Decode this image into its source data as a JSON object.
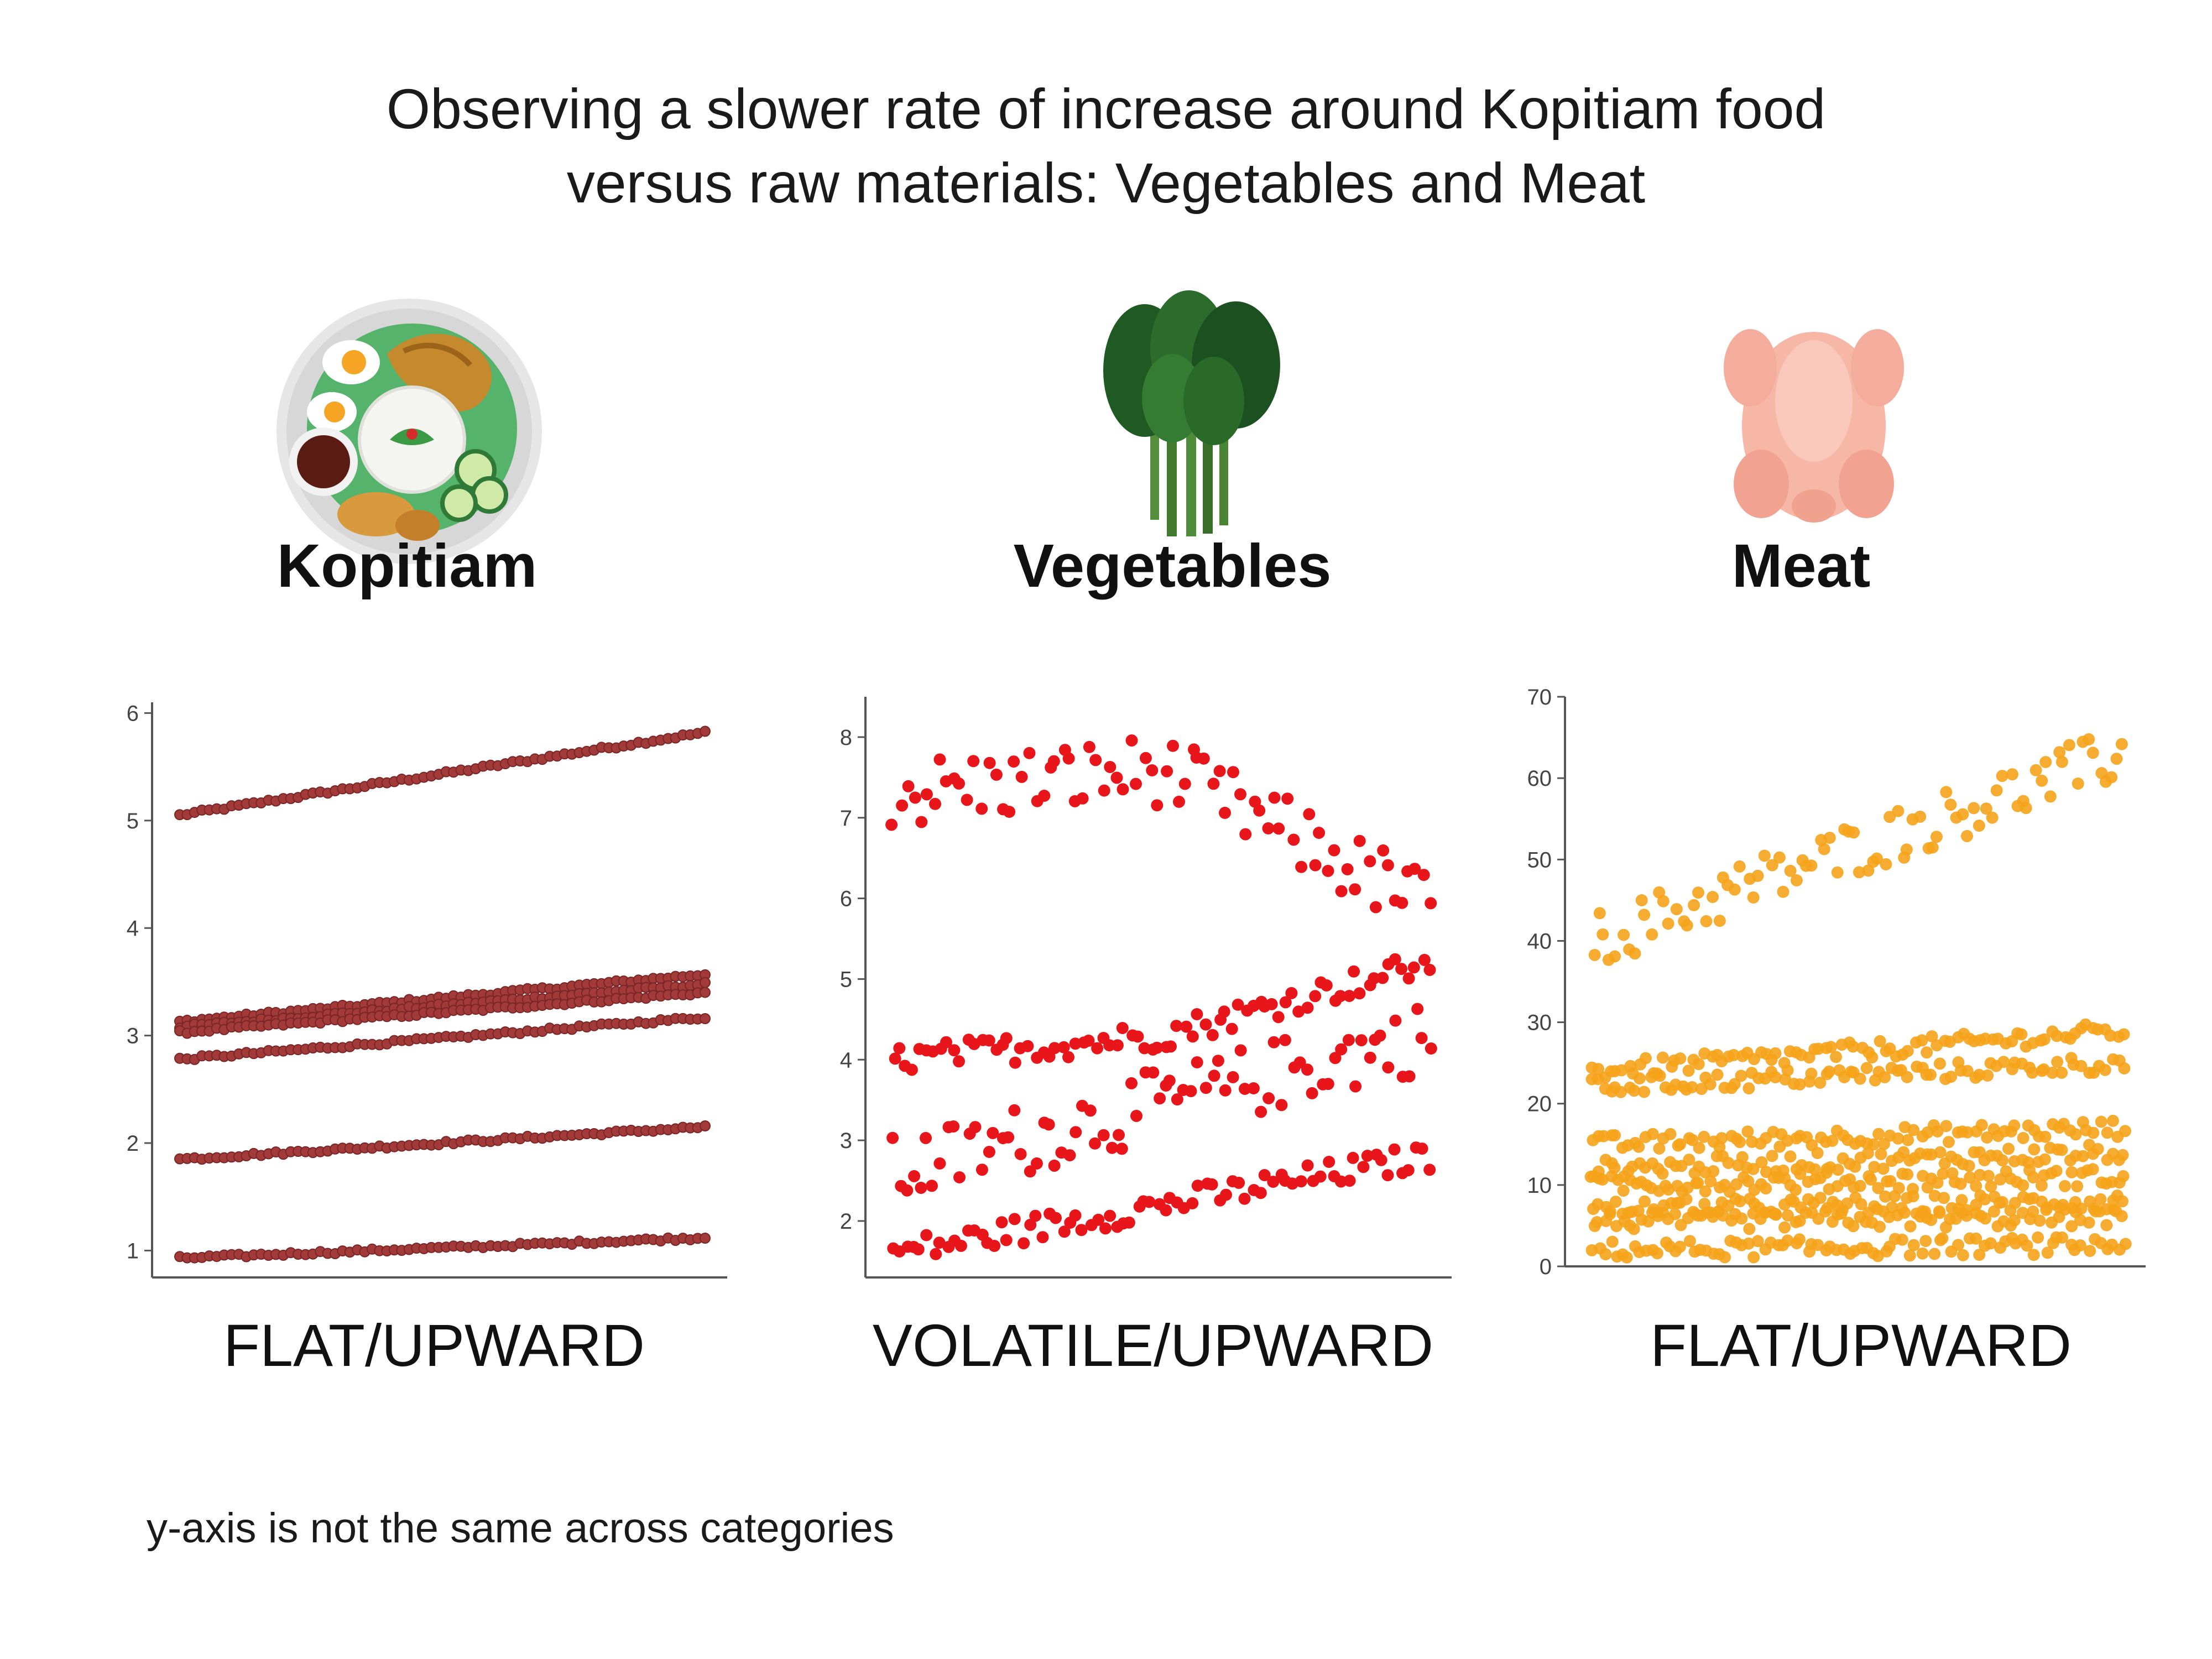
{
  "title_line1": "Observing a slower rate of increase around Kopitiam food",
  "title_line2": "versus raw materials: Vegetables and Meat",
  "footnote": "y-axis is not the same across categories",
  "panels": [
    {
      "category": "Kopitiam",
      "icon": "nasi-lemak-plate-icon",
      "trend": "FLAT/UPWARD"
    },
    {
      "category": "Vegetables",
      "icon": "leafy-greens-icon",
      "trend": "VOLATILE/UPWARD"
    },
    {
      "category": "Meat",
      "icon": "raw-chicken-icon",
      "trend": "FLAT/UPWARD"
    }
  ],
  "chart_data": [
    {
      "type": "scatter",
      "title": "Kopitiam",
      "xlabel": "",
      "ylabel": "",
      "ylim": [
        0.75,
        6.1
      ],
      "yticks": [
        1,
        2,
        3,
        4,
        5,
        6
      ],
      "grid": false,
      "color": "#a33a3a",
      "series_trends": [
        {
          "start": 5.05,
          "end": 5.82
        },
        {
          "start": 3.13,
          "end": 3.57
        },
        {
          "start": 3.08,
          "end": 3.48
        },
        {
          "start": 3.03,
          "end": 3.4
        },
        {
          "start": 2.78,
          "end": 3.17
        },
        {
          "start": 1.85,
          "end": 2.15
        },
        {
          "start": 0.93,
          "end": 1.12
        }
      ],
      "points_per_series": 72
    },
    {
      "type": "scatter",
      "title": "Vegetables",
      "xlabel": "",
      "ylabel": "",
      "ylim": [
        1.3,
        8.5
      ],
      "yticks": [
        2,
        3,
        4,
        5,
        6,
        7,
        8
      ],
      "grid": false,
      "color": "#e8161b",
      "series_trends": [
        {
          "start": 7.3,
          "mid": 7.6,
          "end": 5.9,
          "note_range": [
            6.1,
            8.3
          ]
        },
        {
          "start": 4.0,
          "mid": 4.3,
          "end": 5.2
        },
        {
          "start": 2.6,
          "end": 4.3,
          "note_range": [
            1.6,
            4.5
          ]
        },
        {
          "start": 1.6,
          "end": 2.8
        }
      ],
      "points_per_series": 80
    },
    {
      "type": "scatter",
      "title": "Meat",
      "xlabel": "",
      "ylabel": "",
      "ylim": [
        0,
        70
      ],
      "yticks": [
        0,
        10,
        20,
        30,
        40,
        50,
        60,
        70
      ],
      "grid": false,
      "color": "#f5a31a",
      "series_trends": [
        {
          "start": 40,
          "end": 63,
          "note_range": [
            37,
            67
          ]
        },
        {
          "start": 24,
          "end": 29
        },
        {
          "start": 22,
          "end": 25
        },
        {
          "start": 15,
          "end": 17
        },
        {
          "start": 12,
          "end": 14
        },
        {
          "start": 10,
          "end": 11
        },
        {
          "start": 7,
          "end": 8
        },
        {
          "start": 5.5,
          "end": 6
        },
        {
          "start": 2,
          "end": 2.6
        }
      ],
      "points_per_series": 90
    }
  ]
}
